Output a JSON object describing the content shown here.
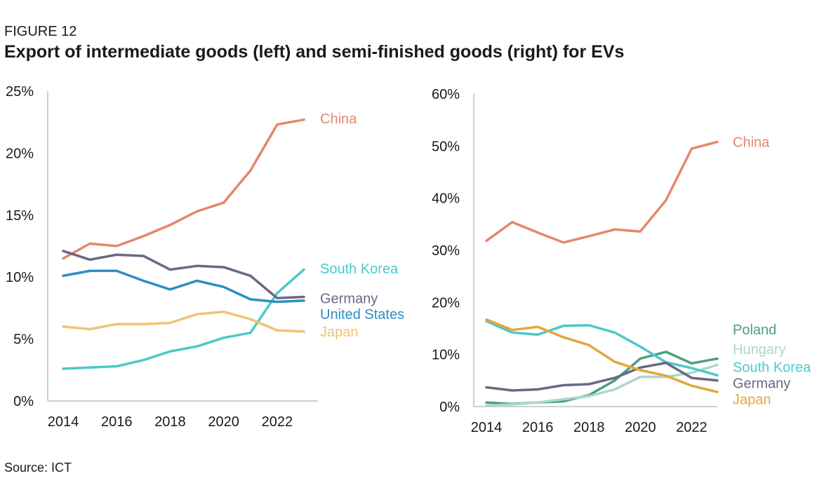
{
  "figure_label": "FIGURE 12",
  "title": "Export of intermediate goods (left) and semi-finished goods (right) for EVs",
  "source": "Source: ICT",
  "chart_data": [
    {
      "type": "line",
      "title": "",
      "xlabel": "",
      "ylabel": "",
      "x": [
        2014,
        2015,
        2016,
        2017,
        2018,
        2019,
        2020,
        2021,
        2022,
        2023
      ],
      "x_ticks": [
        2014,
        2016,
        2018,
        2020,
        2022
      ],
      "ylim": [
        0,
        25
      ],
      "y_ticks": [
        0,
        5,
        10,
        15,
        20,
        25
      ],
      "y_tick_labels": [
        "0%",
        "5%",
        "10%",
        "15%",
        "20%",
        "25%"
      ],
      "grid": false,
      "legend": "end-of-line labels",
      "series": [
        {
          "name": "China",
          "color": "#E5876A",
          "label_y": 22.8,
          "values": [
            11.5,
            12.7,
            12.5,
            13.3,
            14.2,
            15.3,
            16.0,
            18.6,
            22.3,
            22.7
          ]
        },
        {
          "name": "South Korea",
          "color": "#4CC9C9",
          "label_y": 10.7,
          "values": [
            2.6,
            2.7,
            2.8,
            3.3,
            4.0,
            4.4,
            5.1,
            5.5,
            8.7,
            10.6
          ]
        },
        {
          "name": "Germany",
          "color": "#6B6882",
          "label_y": 8.3,
          "values": [
            12.1,
            11.4,
            11.8,
            11.7,
            10.6,
            10.9,
            10.8,
            10.1,
            8.3,
            8.4
          ]
        },
        {
          "name": "United States",
          "color": "#2B8FC1",
          "label_y": 7.0,
          "values": [
            10.1,
            10.5,
            10.5,
            9.7,
            9.0,
            9.7,
            9.2,
            8.2,
            8.0,
            8.1
          ]
        },
        {
          "name": "Japan",
          "color": "#EFC373",
          "label_y": 5.6,
          "values": [
            6.0,
            5.8,
            6.2,
            6.2,
            6.3,
            7.0,
            7.2,
            6.6,
            5.7,
            5.6
          ]
        }
      ]
    },
    {
      "type": "line",
      "title": "",
      "xlabel": "",
      "ylabel": "",
      "x": [
        2014,
        2015,
        2016,
        2017,
        2018,
        2019,
        2020,
        2021,
        2022,
        2023
      ],
      "x_ticks": [
        2014,
        2016,
        2018,
        2020,
        2022
      ],
      "ylim": [
        0,
        60
      ],
      "y_ticks": [
        0,
        10,
        20,
        30,
        40,
        50,
        60
      ],
      "y_tick_labels": [
        "0%",
        "10%",
        "20%",
        "30%",
        "40%",
        "50%",
        "60%"
      ],
      "grid": false,
      "legend": "end-of-line labels",
      "series": [
        {
          "name": "China",
          "color": "#E5876A",
          "label_y": 50.8,
          "values": [
            31.8,
            35.4,
            33.4,
            31.5,
            32.7,
            34.0,
            33.6,
            39.6,
            49.5,
            50.8
          ]
        },
        {
          "name": "Poland",
          "color": "#4C9E83",
          "label_y": 14.8,
          "values": [
            0.8,
            0.5,
            0.8,
            1.0,
            2.2,
            5.0,
            9.2,
            10.5,
            8.3,
            9.2
          ]
        },
        {
          "name": "Hungary",
          "color": "#A9D9C8",
          "label_y": 11.0,
          "values": [
            0.2,
            0.4,
            0.8,
            1.4,
            2.0,
            3.3,
            5.7,
            5.7,
            6.5,
            8.0
          ]
        },
        {
          "name": "South Korea",
          "color": "#4CC9C9",
          "label_y": 7.6,
          "values": [
            16.4,
            14.2,
            13.8,
            15.5,
            15.6,
            14.2,
            11.5,
            8.5,
            7.4,
            6.0
          ]
        },
        {
          "name": "Germany",
          "color": "#6B6882",
          "label_y": 4.5,
          "values": [
            3.7,
            3.1,
            3.3,
            4.1,
            4.3,
            5.5,
            7.5,
            8.4,
            5.5,
            5.0
          ]
        },
        {
          "name": "Japan",
          "color": "#E3A63C",
          "label_y": 1.4,
          "values": [
            16.7,
            14.7,
            15.3,
            13.3,
            11.8,
            8.6,
            7.0,
            5.9,
            4.0,
            2.8
          ]
        }
      ]
    }
  ]
}
